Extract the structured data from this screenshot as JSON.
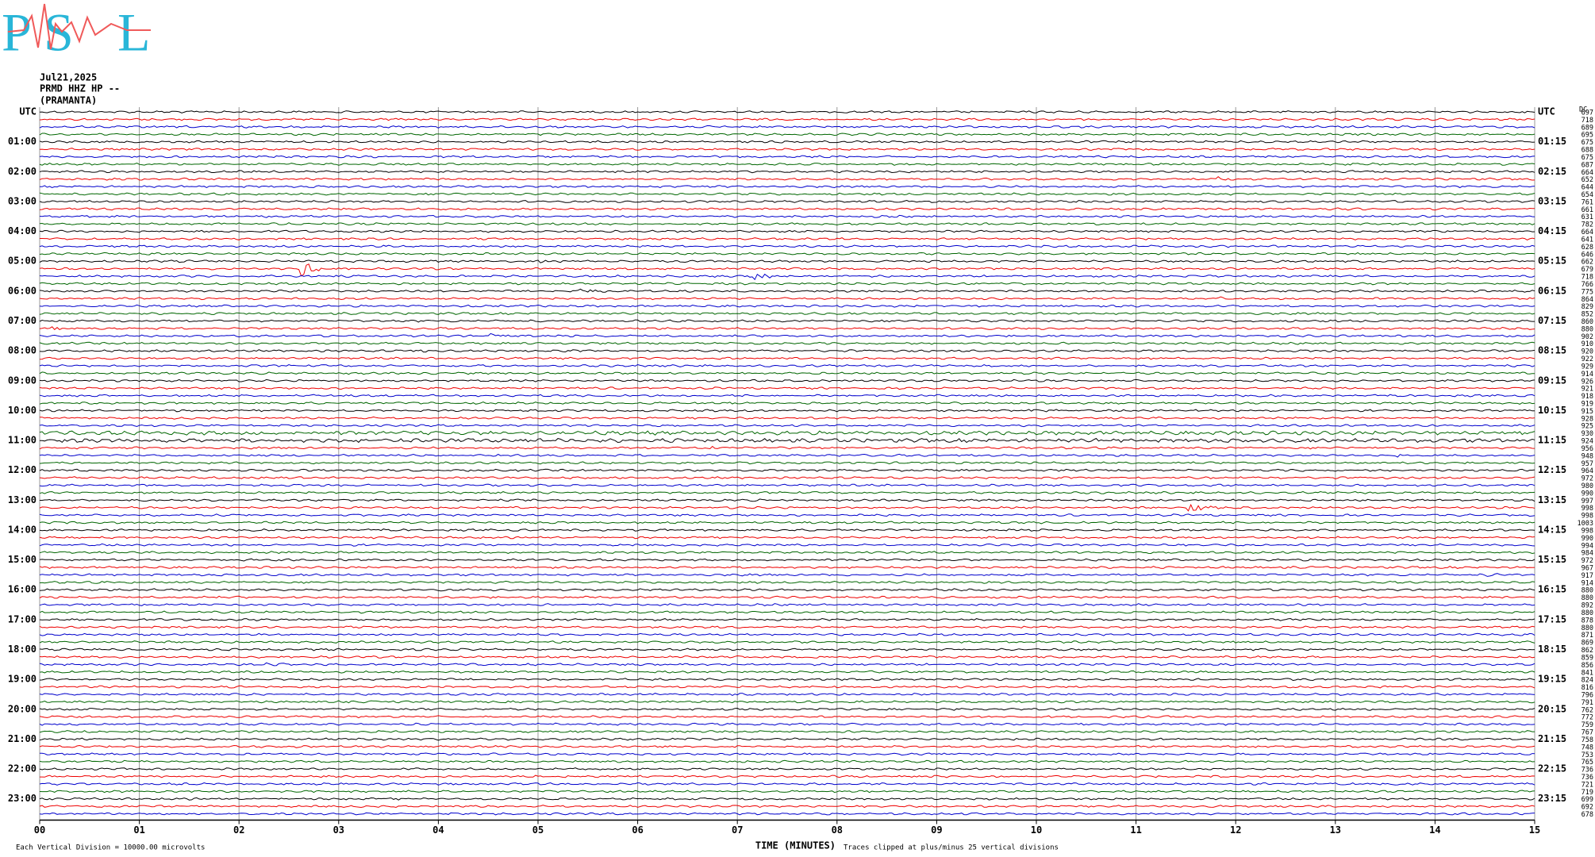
{
  "logo": {
    "letters": [
      "P",
      "S",
      "L"
    ]
  },
  "header": {
    "date": "Jul21,2025",
    "station": "PRMD HHZ HP --",
    "site": "(PRAMANTA)"
  },
  "left_labels": [
    "UTC",
    "01:00",
    "02:00",
    "03:00",
    "04:00",
    "05:00",
    "06:00",
    "07:00",
    "08:00",
    "09:00",
    "10:00",
    "11:00",
    "12:00",
    "13:00",
    "14:00",
    "15:00",
    "16:00",
    "17:00",
    "18:00",
    "19:00",
    "20:00",
    "21:00",
    "22:00",
    "23:00"
  ],
  "right_labels": [
    "UTC",
    "01:15",
    "02:15",
    "03:15",
    "04:15",
    "05:15",
    "06:15",
    "07:15",
    "08:15",
    "09:15",
    "10:15",
    "11:15",
    "12:15",
    "13:15",
    "14:15",
    "15:15",
    "16:15",
    "17:15",
    "18:15",
    "19:15",
    "20:15",
    "21:15",
    "22:15",
    "23:15"
  ],
  "right_header": "DC",
  "dc_values": [
    697,
    718,
    689,
    695,
    675,
    688,
    675,
    687,
    664,
    652,
    644,
    654,
    761,
    661,
    631,
    782,
    664,
    641,
    628,
    646,
    662,
    679,
    718,
    766,
    775,
    864,
    829,
    852,
    860,
    880,
    902,
    910,
    920,
    922,
    929,
    914,
    926,
    921,
    918,
    919,
    915,
    928,
    925,
    930,
    924,
    956,
    948,
    957,
    964,
    972,
    980,
    990,
    997,
    998,
    998,
    1003,
    998,
    990,
    994,
    984,
    972,
    967,
    917,
    914,
    880,
    880,
    892,
    880,
    878,
    880,
    871,
    869,
    862,
    859,
    856,
    841,
    824,
    816,
    796,
    791,
    762,
    772,
    759,
    767,
    758,
    748,
    753,
    765,
    736,
    736,
    721,
    719,
    699,
    692,
    678
  ],
  "x_ticks": [
    "00",
    "01",
    "02",
    "03",
    "04",
    "05",
    "06",
    "07",
    "08",
    "09",
    "10",
    "11",
    "12",
    "13",
    "14",
    "15"
  ],
  "footer": {
    "scale": "Each Vertical Division = 10000.00 microvolts",
    "x_title": "TIME (MINUTES)",
    "clip": "Traces clipped at plus/minus 25 vertical divisions"
  }
}
